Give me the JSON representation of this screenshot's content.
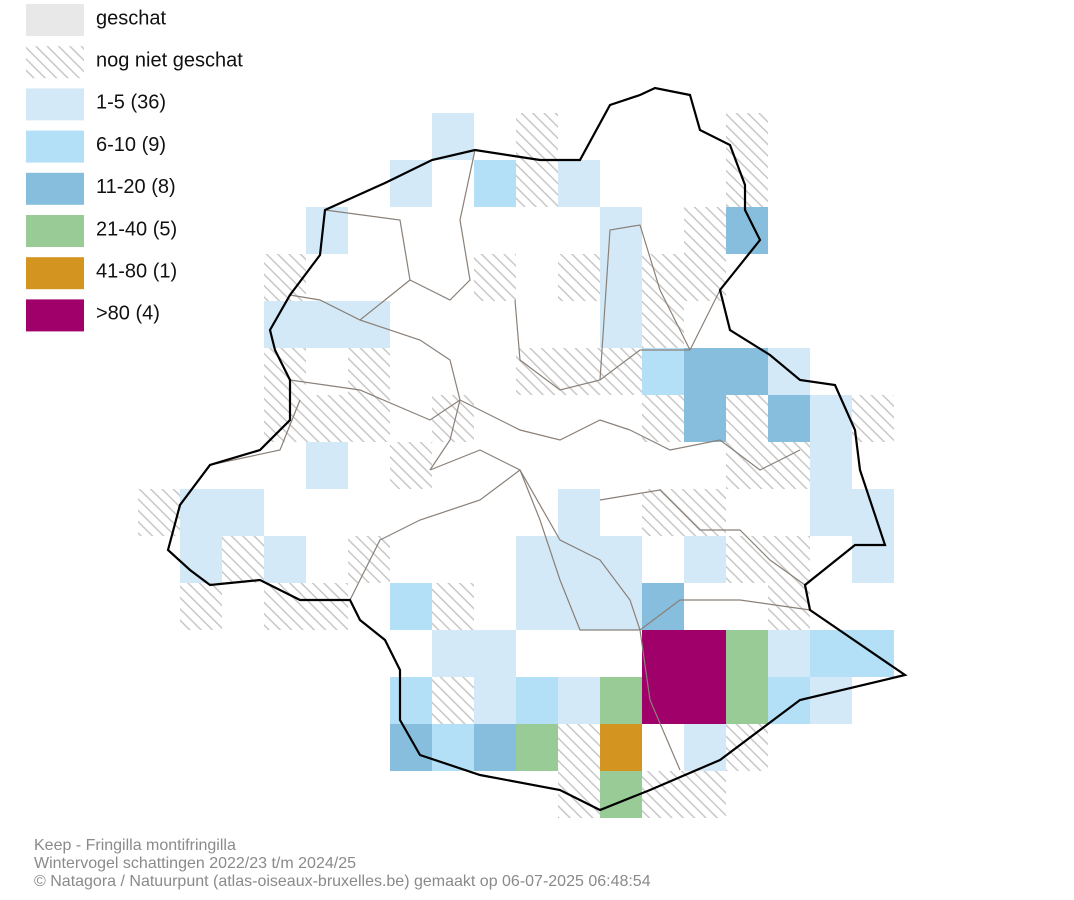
{
  "legend": [
    {
      "label": "geschat",
      "color": "#e8e8e8"
    },
    {
      "label": "nog niet geschat"
    },
    {
      "label": "1-5 (36)",
      "color": "#d4e9f7"
    },
    {
      "label": "6-10 (9)",
      "color": "#b3e0f7"
    },
    {
      "label": "11-20 (8)",
      "color": "#87bedd"
    },
    {
      "label": "21-40 (5)",
      "color": "#98cb96"
    },
    {
      "label": "41-80 (1)",
      "color": "#d39520"
    },
    {
      "label": ">80 (4)",
      "color": "#a0006a"
    }
  ],
  "footer": [
    "Keep - Fringilla montifringilla",
    "Wintervogel schattingen 2022/23 t/m 2024/25",
    "© Natagora / Natuurpunt (atlas-oiseaux-bruxelles.be) gemaakt op 06-07-2025 06:48:54"
  ]
}
